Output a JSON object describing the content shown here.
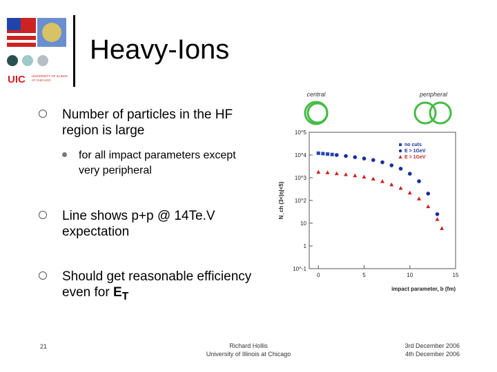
{
  "title": "Heavy-Ions",
  "bullets": [
    {
      "text": "Number of particles in the HF region is large",
      "sub": [
        "for all impact parameters except very peripheral"
      ]
    },
    {
      "text": "Line shows p+p @ 14Te.V expectation"
    },
    {
      "text_before": "Should get reasonable efficiency even for ",
      "bold_text": "E",
      "sub_text": "T"
    }
  ],
  "footer": {
    "page_number": "21",
    "author": "Richard Hollis",
    "affiliation": "University of Illinois at Chicago",
    "date_top": "3rd December 2006",
    "date_bottom": "4th December 2006"
  },
  "logo": {
    "text": "UIC",
    "subtitle": "UNIVERSITY OF ILLINOIS AT CHICAGO"
  },
  "chart_data": {
    "type": "scatter",
    "labels_top": [
      "central",
      "peripheral"
    ],
    "ylabel": "N_ch (3<|η|<5)",
    "xlabel": "impact parameter, b (fm)",
    "x_ticks": [
      "0",
      "5",
      "10",
      "15"
    ],
    "y_ticks": [
      "10^-1",
      "1",
      "10",
      "10^2",
      "10^3",
      "10^4",
      "10^5"
    ],
    "xlim": [
      -1,
      15
    ],
    "ylim_log10": [
      -1,
      5
    ],
    "legend": [
      "no cuts",
      "E > 1GeV",
      "E > 1GeV"
    ],
    "series": [
      {
        "name": "no cuts",
        "color": "#2244bb",
        "marker": "square",
        "x": [
          0,
          0.5,
          1,
          1.5
        ],
        "y": [
          12000,
          11500,
          11000,
          10500
        ]
      },
      {
        "name": "E > 1GeV",
        "color": "#1a2f9e",
        "marker": "circle",
        "x": [
          2,
          3,
          4,
          5,
          6,
          7,
          8,
          9,
          10,
          11,
          12,
          13
        ],
        "y": [
          10000,
          9000,
          8000,
          7000,
          6000,
          4800,
          3500,
          2500,
          1500,
          700,
          200,
          25
        ]
      },
      {
        "name": "E > 1GeV",
        "color": "#cc2222",
        "marker": "triangle",
        "x": [
          0,
          1,
          2,
          3,
          4,
          5,
          6,
          7,
          8,
          9,
          10,
          11,
          12,
          13,
          13.5
        ],
        "y": [
          1800,
          1700,
          1550,
          1400,
          1250,
          1100,
          900,
          700,
          500,
          350,
          220,
          120,
          55,
          15,
          6
        ]
      }
    ],
    "circle_color": "#44bb44"
  }
}
